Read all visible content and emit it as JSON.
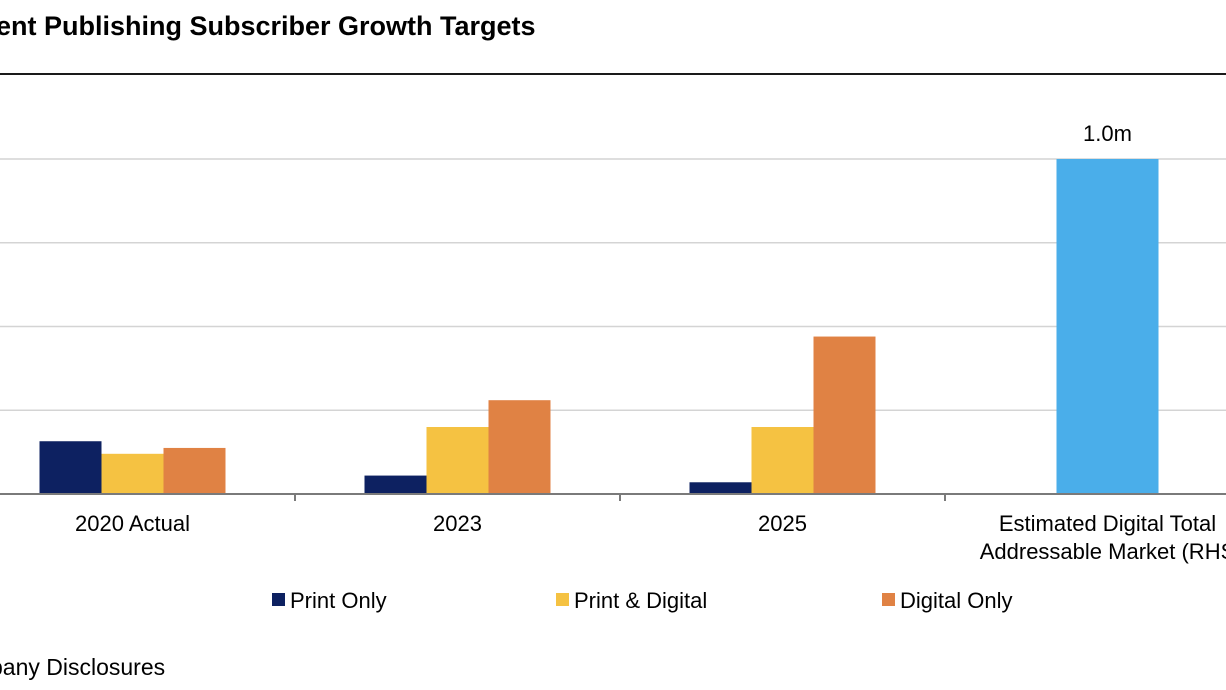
{
  "title": "ent Publishing Subscriber Growth Targets",
  "source": "pany Disclosures",
  "chart_data": {
    "type": "bar",
    "categories": [
      [
        "2020 Actual"
      ],
      [
        "2023"
      ],
      [
        "2025"
      ],
      [
        "Estimated Digital Total",
        "Addressable Market (RHS"
      ]
    ],
    "series": [
      {
        "name": "Print Only",
        "color": "#0d2161",
        "values": [
          0.63,
          0.22,
          0.14,
          null
        ]
      },
      {
        "name": "Print & Digital",
        "color": "#f5c242",
        "values": [
          0.48,
          0.8,
          0.8,
          null
        ]
      },
      {
        "name": "Digital Only",
        "color": "#e08244",
        "values": [
          0.55,
          1.12,
          1.88,
          null
        ]
      }
    ],
    "rhs_series": {
      "color": "#4aaeea",
      "values": [
        null,
        null,
        null,
        1.0
      ],
      "label": "1.0m"
    },
    "ylim": [
      0,
      4
    ],
    "rhs_ylim": [
      0,
      1.25
    ],
    "grid": true,
    "legend_position": "bottom"
  }
}
